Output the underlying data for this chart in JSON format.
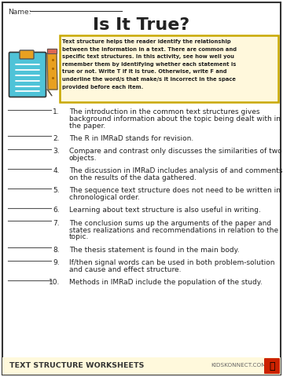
{
  "title": "Is It True?",
  "name_label": "Name:",
  "background_color": "#FFFFFF",
  "border_color": "#333333",
  "title_color": "#222222",
  "instruction_box_bg": "#FFF8DC",
  "instruction_box_border": "#C8A800",
  "inst_lines": [
    "Text structure helps the reader identify the relationship",
    "between the information in a text. There are common and",
    "specific text structures. In this activity, see how well you",
    "remember them by identifying whether each statement is",
    "true or not. Write T if it is true. Otherwise, write F and",
    "underline the word/s that make/s it incorrect in the space",
    "provided before each item."
  ],
  "footer_bg": "#FFF9DC",
  "footer_text": "TEXT STRUCTURE WORKSHEETS",
  "footer_right": "KIDSKONNECT.COM",
  "clipboard_color": "#4FC3D8",
  "clipboard_clip_color": "#E8A020",
  "pencil_body_color": "#E8A020",
  "pencil_tip_color": "#F5D5A0",
  "pencil_eraser_color": "#DD6655",
  "items_lines": [
    [
      "The introduction in the common text structures gives",
      "background information about the topic being dealt with in",
      "the paper."
    ],
    [
      "The R in IMRaD stands for revision."
    ],
    [
      "Compare and contrast only discusses the similarities of two",
      "objects."
    ],
    [
      "The discussion in IMRaD includes analysis of and comments",
      "on the results of the data gathered."
    ],
    [
      "The sequence text structure does not need to be written in",
      "chronological order."
    ],
    [
      "Learning about text structure is also useful in writing."
    ],
    [
      "The conclusion sums up the arguments of the paper and",
      "states realizations and recommendations in relation to the",
      "topic."
    ],
    [
      "The thesis statement is found in the main body."
    ],
    [
      "If/then signal words can be used in both problem-solution",
      "and cause and effect structure."
    ],
    [
      "Methods in IMRaD include the population of the study."
    ]
  ]
}
